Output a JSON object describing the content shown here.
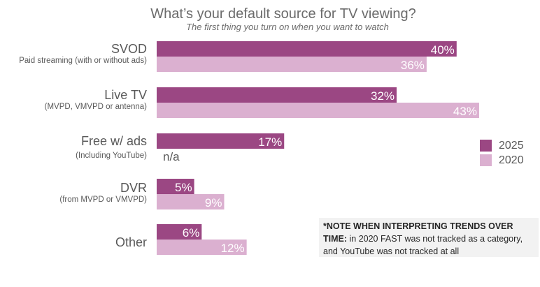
{
  "chart_data": {
    "type": "bar",
    "orientation": "horizontal",
    "title": "What’s your default source for TV viewing?",
    "subtitle": "The first thing you turn on when you want to watch",
    "categories": [
      {
        "name": "SVOD",
        "sub": "Paid streaming (with or without ads)"
      },
      {
        "name": "Live TV",
        "sub": "(MVPD, VMVPD or antenna)"
      },
      {
        "name": "Free w/ ads",
        "sub": "(Including YouTube)"
      },
      {
        "name": "DVR",
        "sub": "(from MVPD or VMVPD)"
      },
      {
        "name": "Other",
        "sub": ""
      }
    ],
    "series": [
      {
        "name": "2025",
        "color": "#9b4783",
        "values": [
          40,
          32,
          17,
          5,
          6
        ],
        "labels": [
          "40%",
          "32%",
          "17%",
          "5%",
          "6%"
        ]
      },
      {
        "name": "2020",
        "color": "#dbb0d0",
        "values": [
          36,
          43,
          null,
          9,
          12
        ],
        "labels": [
          "36%",
          "43%",
          "n/a",
          "9%",
          "12%"
        ]
      }
    ],
    "xlim": [
      0,
      50
    ],
    "grid": false,
    "legend_position": "right"
  },
  "note": {
    "bold": "*NOTE WHEN INTERPRETING TRENDS OVER TIME:",
    "text": " in 2020 FAST was not tracked as a category, and YouTube was not tracked at all"
  }
}
